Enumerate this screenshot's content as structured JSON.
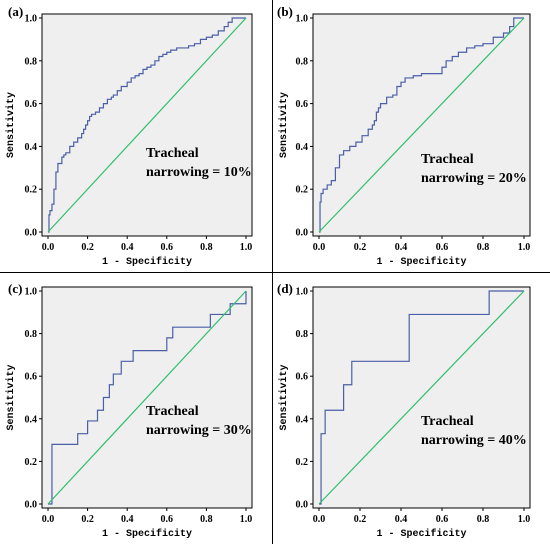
{
  "chart_data": [
    {
      "panel": "(a)",
      "type": "line",
      "xlabel": "1 - Specificity",
      "ylabel": "Sensitivity",
      "xlim": [
        0,
        1.0
      ],
      "ylim": [
        0,
        1.0
      ],
      "xticks": [
        "0.0",
        "0.2",
        "0.4",
        "0.6",
        "0.8",
        "1.0"
      ],
      "yticks": [
        "0.0",
        "0.2",
        "0.4",
        "0.6",
        "0.8",
        "1.0"
      ],
      "annotation": [
        "Tracheal",
        "narrowing = 10%"
      ],
      "series": [
        {
          "color": "#4a5fa6",
          "step": true,
          "x": [
            0,
            0.005,
            0.005,
            0.01,
            0.02,
            0.03,
            0.04,
            0.05,
            0.05,
            0.07,
            0.08,
            0.09,
            0.11,
            0.13,
            0.15,
            0.17,
            0.18,
            0.19,
            0.2,
            0.21,
            0.22,
            0.24,
            0.26,
            0.28,
            0.3,
            0.32,
            0.33,
            0.35,
            0.37,
            0.4,
            0.42,
            0.44,
            0.46,
            0.48,
            0.5,
            0.52,
            0.54,
            0.56,
            0.58,
            0.6,
            0.62,
            0.65,
            0.68,
            0.71,
            0.74,
            0.77,
            0.8,
            0.83,
            0.86,
            0.89,
            0.91,
            0.93,
            1.0
          ],
          "y": [
            0,
            0.04,
            0.08,
            0.1,
            0.13,
            0.2,
            0.28,
            0.3,
            0.32,
            0.35,
            0.36,
            0.37,
            0.4,
            0.42,
            0.44,
            0.46,
            0.48,
            0.5,
            0.52,
            0.54,
            0.55,
            0.56,
            0.58,
            0.6,
            0.62,
            0.63,
            0.64,
            0.66,
            0.68,
            0.7,
            0.72,
            0.73,
            0.74,
            0.76,
            0.77,
            0.78,
            0.8,
            0.82,
            0.83,
            0.84,
            0.85,
            0.86,
            0.86,
            0.87,
            0.88,
            0.9,
            0.91,
            0.92,
            0.94,
            0.96,
            0.98,
            1.0,
            1.0
          ]
        },
        {
          "color": "#2fbf6a",
          "x": [
            0,
            1
          ],
          "y": [
            0,
            1
          ]
        }
      ]
    },
    {
      "panel": "(b)",
      "type": "line",
      "xlabel": "1 - Specificity",
      "ylabel": "Sensitivity",
      "xlim": [
        0,
        1.0
      ],
      "ylim": [
        0,
        1.0
      ],
      "xticks": [
        "0.0",
        "0.2",
        "0.4",
        "0.6",
        "0.8",
        "1.0"
      ],
      "yticks": [
        "0.0",
        "0.2",
        "0.4",
        "0.6",
        "0.8",
        "1.0"
      ],
      "annotation": [
        "Tracheal",
        "narrowing = 20%"
      ],
      "series": [
        {
          "color": "#4a5fa6",
          "step": true,
          "x": [
            0,
            0.005,
            0.01,
            0.02,
            0.04,
            0.06,
            0.08,
            0.1,
            0.12,
            0.15,
            0.18,
            0.21,
            0.24,
            0.26,
            0.27,
            0.28,
            0.29,
            0.3,
            0.33,
            0.36,
            0.38,
            0.4,
            0.42,
            0.46,
            0.5,
            0.55,
            0.6,
            0.62,
            0.65,
            0.68,
            0.72,
            0.76,
            0.8,
            0.85,
            0.9,
            0.93,
            0.95,
            1.0
          ],
          "y": [
            0,
            0.14,
            0.18,
            0.2,
            0.22,
            0.24,
            0.3,
            0.36,
            0.38,
            0.4,
            0.42,
            0.45,
            0.48,
            0.5,
            0.52,
            0.56,
            0.58,
            0.6,
            0.63,
            0.64,
            0.68,
            0.7,
            0.72,
            0.73,
            0.74,
            0.74,
            0.77,
            0.8,
            0.82,
            0.84,
            0.86,
            0.87,
            0.88,
            0.91,
            0.93,
            0.96,
            1.0,
            1.0
          ]
        },
        {
          "color": "#2fbf6a",
          "x": [
            0,
            1
          ],
          "y": [
            0,
            1
          ]
        }
      ]
    },
    {
      "panel": "(c)",
      "type": "line",
      "xlabel": "1 - Specificity",
      "ylabel": "Sensitivity",
      "xlim": [
        0,
        1.0
      ],
      "ylim": [
        0,
        1.0
      ],
      "xticks": [
        "0.0",
        "0.2",
        "0.4",
        "0.6",
        "0.8",
        "1.0"
      ],
      "yticks": [
        "0.0",
        "0.2",
        "0.4",
        "0.6",
        "0.8",
        "1.0"
      ],
      "annotation": [
        "Tracheal",
        "narrowing = 30%"
      ],
      "series": [
        {
          "color": "#4a5fa6",
          "step": true,
          "x": [
            0,
            0.02,
            0.02,
            0.15,
            0.2,
            0.25,
            0.28,
            0.31,
            0.33,
            0.37,
            0.43,
            0.6,
            0.63,
            0.82,
            0.92,
            1.0
          ],
          "y": [
            0,
            0.22,
            0.28,
            0.33,
            0.39,
            0.44,
            0.5,
            0.56,
            0.61,
            0.67,
            0.72,
            0.78,
            0.83,
            0.89,
            0.94,
            1.0
          ]
        },
        {
          "color": "#2fbf6a",
          "x": [
            0,
            1
          ],
          "y": [
            0,
            1
          ]
        }
      ]
    },
    {
      "panel": "(d)",
      "type": "line",
      "xlabel": "1 - Specificity",
      "ylabel": "Sensitivity",
      "xlim": [
        0,
        1.0
      ],
      "ylim": [
        0,
        1.0
      ],
      "xticks": [
        "0.0",
        "0.2",
        "0.4",
        "0.6",
        "0.8",
        "1.0"
      ],
      "yticks": [
        "0.0",
        "0.2",
        "0.4",
        "0.6",
        "0.8",
        "1.0"
      ],
      "annotation": [
        "Tracheal",
        "narrowing = 40%"
      ],
      "series": [
        {
          "color": "#4a5fa6",
          "step": true,
          "x": [
            0,
            0.01,
            0.03,
            0.12,
            0.16,
            0.2,
            0.44,
            0.83,
            1.0
          ],
          "y": [
            0,
            0.33,
            0.44,
            0.56,
            0.67,
            0.67,
            0.89,
            1.0,
            1.0
          ]
        },
        {
          "color": "#2fbf6a",
          "x": [
            0,
            1
          ],
          "y": [
            0,
            1
          ]
        }
      ]
    }
  ]
}
